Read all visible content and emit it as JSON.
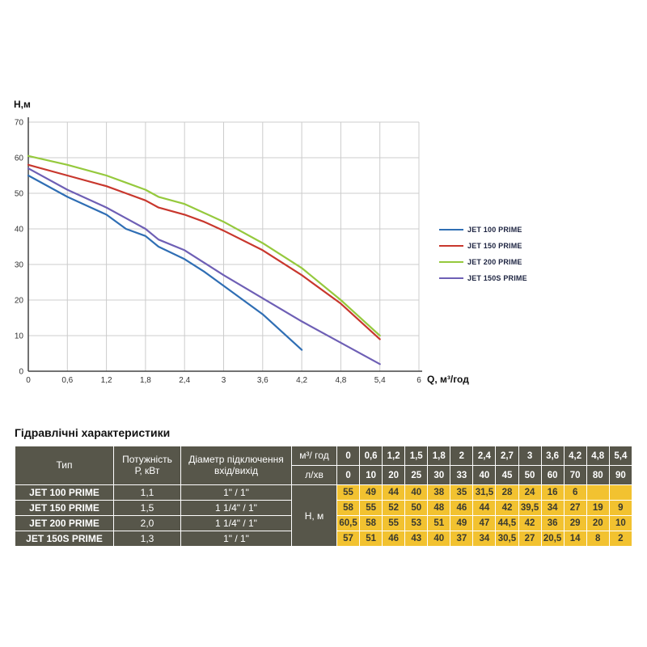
{
  "heading": "Гідравлічні характеристики",
  "chart_data": {
    "type": "line",
    "title": "",
    "xlabel": "Q,  м³/год",
    "ylabel": "Н,м",
    "xlim": [
      0,
      6
    ],
    "ylim": [
      0,
      70
    ],
    "grid": true,
    "legend_position": "right",
    "x_ticks": [
      {
        "v": 0,
        "label": "0"
      },
      {
        "v": 0.6,
        "label": "0,6"
      },
      {
        "v": 1.2,
        "label": "1,2"
      },
      {
        "v": 1.8,
        "label": "1,8"
      },
      {
        "v": 2.4,
        "label": "2,4"
      },
      {
        "v": 3,
        "label": "3"
      },
      {
        "v": 3.6,
        "label": "3,6"
      },
      {
        "v": 4.2,
        "label": "4,2"
      },
      {
        "v": 4.8,
        "label": "4,8"
      },
      {
        "v": 5.4,
        "label": "5,4"
      },
      {
        "v": 6,
        "label": "6"
      }
    ],
    "y_ticks": [
      0,
      10,
      20,
      30,
      40,
      50,
      60,
      70
    ],
    "x": [
      0,
      0.6,
      1.2,
      1.5,
      1.8,
      2,
      2.4,
      2.7,
      3,
      3.6,
      4.2,
      4.8,
      5.4
    ],
    "series": [
      {
        "name": "JET 100 PRIME",
        "color": "#2f6eb4",
        "values": [
          55,
          49,
          44,
          40,
          38,
          35,
          31.5,
          28,
          24,
          16,
          6,
          null,
          null
        ]
      },
      {
        "name": "JET 150 PRIME",
        "color": "#c8372d",
        "values": [
          58,
          55,
          52,
          50,
          48,
          46,
          44,
          42,
          39.5,
          34,
          27,
          19,
          9
        ]
      },
      {
        "name": "JET 200 PRIME",
        "color": "#95c93d",
        "values": [
          60.5,
          58,
          55,
          53,
          51,
          49,
          47,
          44.5,
          42,
          36,
          29,
          20,
          10
        ]
      },
      {
        "name": "JET 150S PRIME",
        "color": "#6e5fb5",
        "values": [
          57,
          51,
          46,
          43,
          40,
          37,
          34,
          30.5,
          27,
          20.5,
          14,
          8,
          2
        ]
      }
    ]
  },
  "table": {
    "col_headers": {
      "type": "Тип",
      "power": "Потужність\nР, кВт",
      "diameter": "Діаметр підключення\nвхід/вихід",
      "flow_m3": "м³/ год",
      "flow_lmin": "л/хв",
      "head": "Н, м"
    },
    "flow_m3_values": [
      "0",
      "0,6",
      "1,2",
      "1,5",
      "1,8",
      "2",
      "2,4",
      "2,7",
      "3",
      "3,6",
      "4,2",
      "4,8",
      "5,4"
    ],
    "flow_lmin_values": [
      "0",
      "10",
      "20",
      "25",
      "30",
      "33",
      "40",
      "45",
      "50",
      "60",
      "70",
      "80",
      "90"
    ],
    "rows": [
      {
        "type": "JET 100 PRIME",
        "power": "1,1",
        "diameter": "1\" / 1\"",
        "values": [
          "55",
          "49",
          "44",
          "40",
          "38",
          "35",
          "31,5",
          "28",
          "24",
          "16",
          "6",
          "",
          ""
        ]
      },
      {
        "type": "JET 150 PRIME",
        "power": "1,5",
        "diameter": "1 1/4\" / 1\"",
        "values": [
          "58",
          "55",
          "52",
          "50",
          "48",
          "46",
          "44",
          "42",
          "39,5",
          "34",
          "27",
          "19",
          "9"
        ]
      },
      {
        "type": "JET 200 PRIME",
        "power": "2,0",
        "diameter": "1 1/4\" / 1\"",
        "values": [
          "60,5",
          "58",
          "55",
          "53",
          "51",
          "49",
          "47",
          "44,5",
          "42",
          "36",
          "29",
          "20",
          "10"
        ]
      },
      {
        "type": "JET 150S PRIME",
        "power": "1,3",
        "diameter": "1\" / 1\"",
        "values": [
          "57",
          "51",
          "46",
          "43",
          "40",
          "37",
          "34",
          "30,5",
          "27",
          "20,5",
          "14",
          "8",
          "2"
        ]
      }
    ]
  },
  "colors": {
    "table_header_bg": "#57564a",
    "table_value_bg": "#f2c230",
    "grid": "#cccccc",
    "axis": "#444444"
  }
}
